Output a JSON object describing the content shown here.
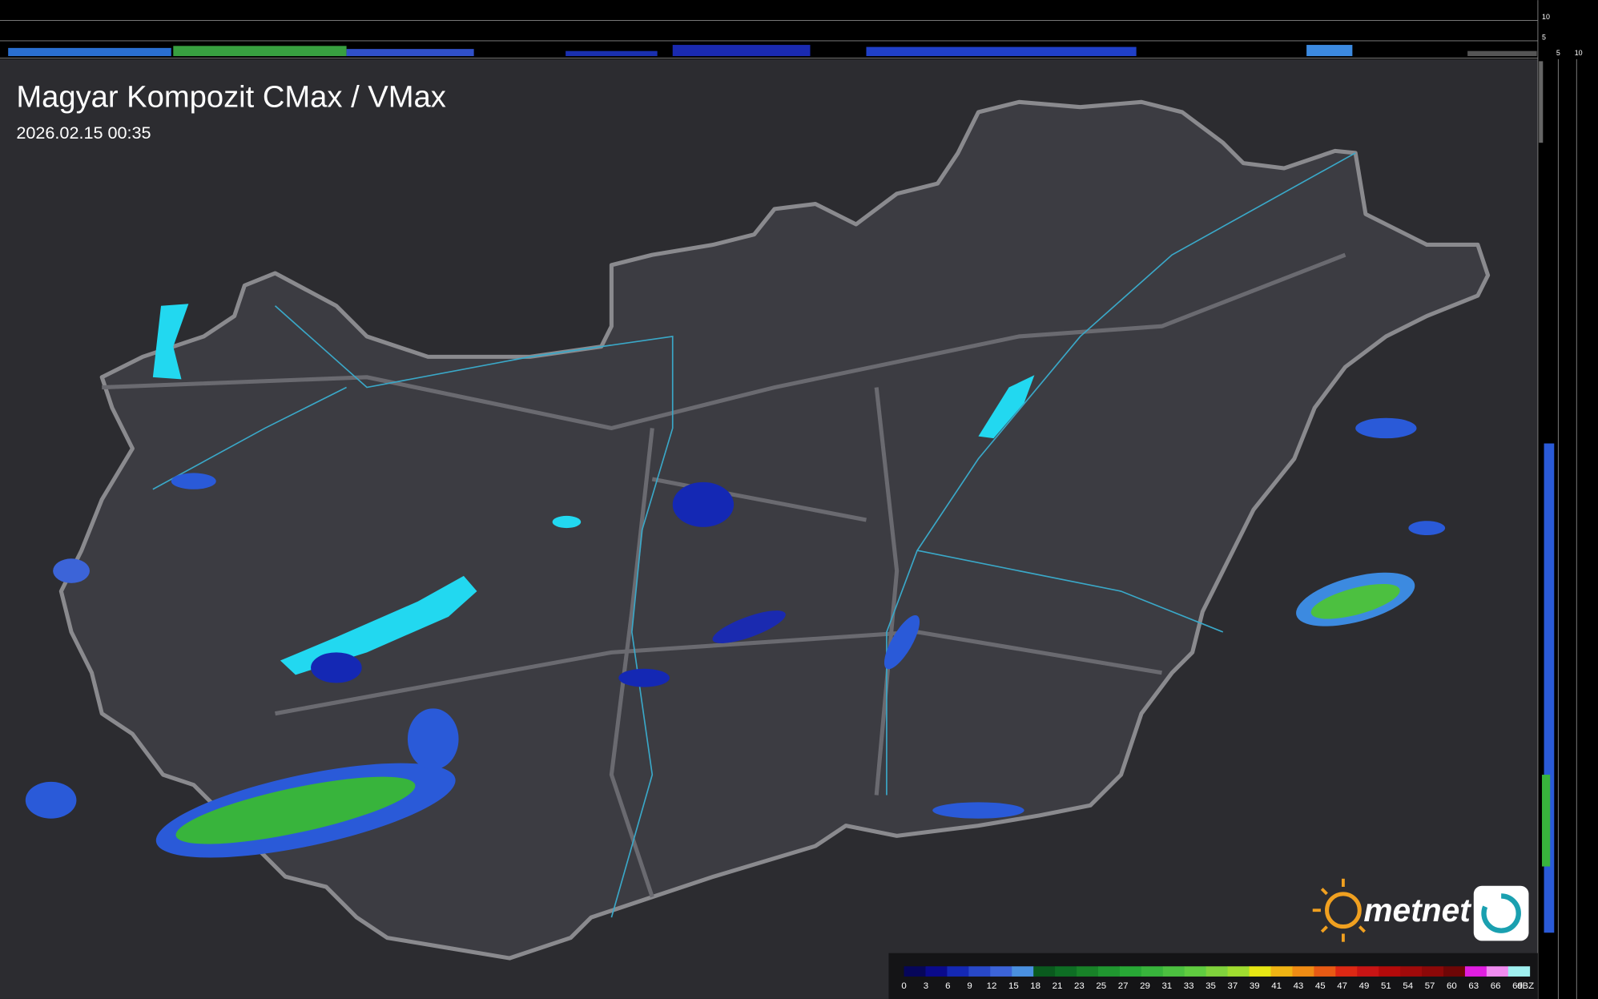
{
  "header": {
    "title": "Magyar Kompozit CMax / VMax",
    "timestamp": "2026.02.15 00:35"
  },
  "top_profile": {
    "labels": [
      "10",
      "5"
    ]
  },
  "side_profile": {
    "labels": [
      "5",
      "10"
    ]
  },
  "logo": {
    "text": "metnet"
  },
  "legend": {
    "ticks": [
      0,
      3,
      6,
      9,
      12,
      15,
      18,
      21,
      23,
      25,
      27,
      29,
      31,
      33,
      35,
      37,
      39,
      41,
      43,
      45,
      47,
      49,
      51,
      54,
      57,
      60,
      63,
      66,
      69
    ],
    "unit": "dBZ",
    "colors": [
      "#06065a",
      "#0a0a8c",
      "#1428b4",
      "#2848c8",
      "#3c64d8",
      "#4a90e0",
      "#0a5a1e",
      "#0e6e24",
      "#188228",
      "#209630",
      "#28a836",
      "#38b43c",
      "#4cc040",
      "#60cc40",
      "#80d23c",
      "#a0dc30",
      "#e6e614",
      "#f0b414",
      "#f08c14",
      "#e85a14",
      "#dc2814",
      "#c81414",
      "#b40a0a",
      "#a00a0a",
      "#8c0808",
      "#6e0606",
      "#e01ee0",
      "#f08cf0",
      "#a0f0f0"
    ]
  }
}
